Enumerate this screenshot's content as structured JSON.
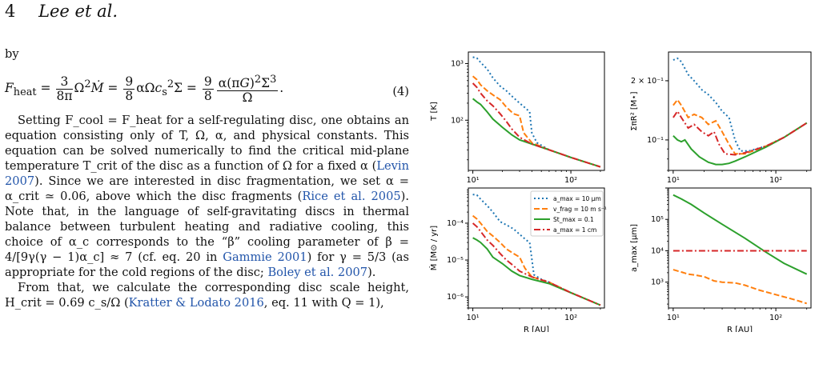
{
  "header": {
    "page_number": "4",
    "running_head": "Lee et al."
  },
  "text": {
    "by": "by",
    "eq4_lhs": "F",
    "eq4_lhs_sub": "heat",
    "eq4_number": "(4)",
    "para1": "Setting F_cool = F_heat for a self-regulating disc, one obtains an equation consisting only of T, Ω, α, and physical constants. This equation can be solved numerically to find the critical mid-plane temperature T_crit of the disc as a function of Ω for a fixed α (",
    "cite_levin": "Levin 2007",
    "para1b": "). Since we are interested in disc fragmentation, we set α = α_crit ≃ 0.06, above which the disc fragments (",
    "cite_rice": "Rice et al. 2005",
    "para1c": "). Note that, in the language of self-gravitating discs in thermal balance between turbulent heating and radiative cooling, this choice of α_c corresponds to the “β” cooling parameter of β = 4/[9γ(γ − 1)α_c] ≈ 7 (cf. eq. 20 in ",
    "cite_gammie": "Gammie 2001",
    "para1d": ") for γ = 5/3 (as appropriate for the cold regions of the disc; ",
    "cite_boley": "Boley et al. 2007",
    "para1e": ").",
    "para2": "From that, we calculate the corresponding disc scale height, H_crit = 0.69 c_s/Ω (",
    "cite_kratter": "Kratter & Lodato 2016",
    "para2b": ", eq. 11 with Q = 1),"
  },
  "chart_data": [
    {
      "type": "line",
      "ylabel": "T [K]",
      "xlabel": "",
      "xlog": true,
      "ylog": true,
      "xlim": [
        9,
        220
      ],
      "ylim": [
        13,
        1600
      ],
      "yticks": [
        "10²",
        "10³"
      ],
      "series": [
        {
          "name": "a_max = 10 μm",
          "style": "dotted",
          "color": "#1f77b4",
          "x": [
            10,
            11,
            12,
            14,
            16,
            19,
            22,
            26,
            30,
            35,
            38,
            40,
            45,
            60,
            100,
            200
          ],
          "y": [
            1300,
            1250,
            1050,
            800,
            560,
            400,
            330,
            250,
            200,
            160,
            140,
            60,
            40,
            30,
            22,
            15
          ]
        },
        {
          "name": "v_frag = 10 m s⁻¹",
          "style": "dashed",
          "color": "#ff7f0e",
          "x": [
            10,
            11,
            12,
            14,
            16,
            19,
            22,
            26,
            30,
            33,
            40,
            60,
            100,
            200
          ],
          "y": [
            600,
            520,
            420,
            330,
            280,
            230,
            170,
            130,
            120,
            60,
            40,
            30,
            22,
            15
          ]
        },
        {
          "name": "St_max = 0.1",
          "style": "solid",
          "color": "#2ca02c",
          "x": [
            10,
            11,
            12,
            14,
            16,
            20,
            25,
            30,
            40,
            60,
            100,
            200
          ],
          "y": [
            240,
            210,
            190,
            140,
            105,
            75,
            55,
            45,
            38,
            30,
            22,
            15
          ]
        },
        {
          "name": "a_max = 1 cm",
          "style": "dashdot",
          "color": "#d62728",
          "x": [
            10,
            11,
            12,
            14,
            16,
            19,
            22,
            25,
            30,
            40,
            60,
            100,
            200
          ],
          "y": [
            450,
            380,
            300,
            220,
            180,
            130,
            95,
            70,
            50,
            38,
            30,
            22,
            15
          ]
        }
      ]
    },
    {
      "type": "line",
      "ylabel": "ΣπR² [M⋆]",
      "xlabel": "",
      "xlog": true,
      "ylog": true,
      "xlim": [
        9,
        220
      ],
      "ylim": [
        0.07,
        0.28
      ],
      "yticks": [
        "10⁻¹",
        "2 × 10⁻¹"
      ],
      "series": [
        {
          "name": "a_max = 10 μm",
          "style": "dotted",
          "color": "#1f77b4",
          "x": [
            10,
            11,
            12,
            14,
            16,
            19,
            22,
            26,
            30,
            35,
            40,
            45,
            55,
            80,
            120,
            200
          ],
          "y": [
            0.255,
            0.26,
            0.25,
            0.215,
            0.2,
            0.18,
            0.17,
            0.155,
            0.14,
            0.13,
            0.1,
            0.088,
            0.088,
            0.093,
            0.103,
            0.122
          ]
        },
        {
          "name": "v_frag = 10 m s⁻¹",
          "style": "dashed",
          "color": "#ff7f0e",
          "x": [
            10,
            11,
            12,
            14,
            16,
            19,
            22,
            26,
            30,
            35,
            40,
            50,
            80,
            120,
            200
          ],
          "y": [
            0.15,
            0.16,
            0.15,
            0.13,
            0.135,
            0.13,
            0.12,
            0.125,
            0.11,
            0.095,
            0.085,
            0.085,
            0.093,
            0.103,
            0.122
          ]
        },
        {
          "name": "St_max = 0.1",
          "style": "solid",
          "color": "#2ca02c",
          "x": [
            10,
            11,
            12,
            13,
            15,
            18,
            22,
            26,
            30,
            35,
            40,
            50,
            80,
            120,
            200
          ],
          "y": [
            0.105,
            0.1,
            0.098,
            0.1,
            0.09,
            0.082,
            0.077,
            0.075,
            0.075,
            0.076,
            0.078,
            0.082,
            0.092,
            0.103,
            0.122
          ]
        },
        {
          "name": "a_max = 1 cm",
          "style": "dashdot",
          "color": "#d62728",
          "x": [
            10,
            11,
            12,
            14,
            16,
            19,
            22,
            25,
            28,
            32,
            40,
            50,
            80,
            120,
            200
          ],
          "y": [
            0.13,
            0.14,
            0.13,
            0.115,
            0.12,
            0.11,
            0.105,
            0.11,
            0.095,
            0.085,
            0.084,
            0.086,
            0.093,
            0.103,
            0.122
          ]
        }
      ]
    },
    {
      "type": "line",
      "ylabel": "Ṁ [M⊙ / yr]",
      "xlabel": "R [AU]",
      "xlog": true,
      "ylog": true,
      "xlim": [
        9,
        220
      ],
      "ylim": [
        5e-07,
        0.0009
      ],
      "yticks": [
        "10⁻⁶",
        "10⁻⁵",
        "10⁻⁴"
      ],
      "series": [
        {
          "name": "a_max = 10 μm",
          "style": "dotted",
          "color": "#1f77b4",
          "x": [
            10,
            11,
            12,
            14,
            16,
            19,
            22,
            26,
            30,
            35,
            38,
            42,
            50,
            60,
            100,
            200
          ],
          "y": [
            0.0006,
            0.00058,
            0.00045,
            0.0003,
            0.0002,
            0.00011,
            9e-05,
            7e-05,
            5e-05,
            3.5e-05,
            3e-05,
            4e-06,
            3e-06,
            2.5e-06,
            1.3e-06,
            6e-07
          ]
        },
        {
          "name": "v_frag = 10 m s⁻¹",
          "style": "dashed",
          "color": "#ff7f0e",
          "x": [
            10,
            11,
            12,
            14,
            16,
            19,
            22,
            26,
            30,
            34,
            40,
            60,
            100,
            200
          ],
          "y": [
            0.00016,
            0.00013,
            0.0001,
            6e-05,
            4.5e-05,
            3e-05,
            2e-05,
            1.5e-05,
            1.2e-05,
            6e-06,
            3.5e-06,
            2.5e-06,
            1.3e-06,
            6e-07
          ]
        },
        {
          "name": "St_max = 0.1",
          "style": "solid",
          "color": "#2ca02c",
          "x": [
            10,
            11,
            12,
            14,
            16,
            20,
            25,
            30,
            40,
            60,
            100,
            200
          ],
          "y": [
            4e-05,
            3.5e-05,
            3e-05,
            2e-05,
            1.2e-05,
            8e-06,
            5e-06,
            3.8e-06,
            3e-06,
            2.3e-06,
            1.3e-06,
            6e-07
          ]
        },
        {
          "name": "a_max = 1 cm",
          "style": "dashdot",
          "color": "#d62728",
          "x": [
            10,
            11,
            12,
            14,
            16,
            19,
            22,
            26,
            30,
            40,
            60,
            100,
            200
          ],
          "y": [
            0.0001,
            8e-05,
            6e-05,
            3.5e-05,
            2.5e-05,
            1.5e-05,
            1e-05,
            7e-06,
            5e-06,
            3.5e-06,
            2.5e-06,
            1.3e-06,
            6e-07
          ]
        }
      ]
    },
    {
      "type": "line",
      "ylabel": "a_max [μm]",
      "xlabel": "R [AU]",
      "xlog": true,
      "ylog": true,
      "xlim": [
        9,
        220
      ],
      "ylim": [
        150,
        1000000
      ],
      "yticks": [
        "10³",
        "10⁴",
        "10⁵"
      ],
      "series": [
        {
          "name": "v_frag = 10 m s⁻¹",
          "style": "dashed",
          "color": "#ff7f0e",
          "x": [
            10,
            12,
            14,
            16,
            20,
            25,
            30,
            40,
            50,
            70,
            100,
            150,
            200
          ],
          "y": [
            2500,
            2100,
            1800,
            1700,
            1500,
            1100,
            1000,
            950,
            800,
            550,
            400,
            280,
            210
          ]
        },
        {
          "name": "St_max = 0.1",
          "style": "solid",
          "color": "#2ca02c",
          "x": [
            10,
            12,
            15,
            20,
            30,
            50,
            80,
            120,
            200
          ],
          "y": [
            600000,
            450000,
            300000,
            160000,
            70000,
            25000,
            9000,
            4000,
            1800
          ]
        },
        {
          "name": "a_max = 1 cm",
          "style": "dashdot",
          "color": "#d62728",
          "x": [
            10,
            200
          ],
          "y": [
            10000,
            10000
          ]
        }
      ]
    }
  ],
  "legend": [
    {
      "label": "a_max = 10 μm",
      "style": "dotted",
      "color": "#1f77b4"
    },
    {
      "label": "v_frag = 10 m s⁻¹",
      "style": "dashed",
      "color": "#ff7f0e"
    },
    {
      "label": "St_max = 0.1",
      "style": "solid",
      "color": "#2ca02c"
    },
    {
      "label": "a_max = 1 cm",
      "style": "dashdot",
      "color": "#d62728"
    }
  ],
  "xtick_labels": [
    "10¹",
    "10²"
  ]
}
